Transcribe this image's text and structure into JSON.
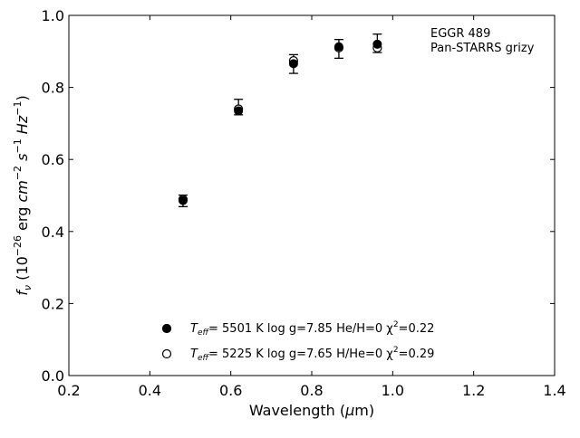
{
  "chart_data": {
    "type": "scatter",
    "xlabel": "Wavelength (μm)",
    "ylabel": "f_ν (10^-26 erg cm^-2 s^-1 Hz^-1)",
    "xlim": [
      0.2,
      1.4
    ],
    "ylim": [
      0.0,
      1.0
    ],
    "x_ticks": [
      "0.2",
      "0.4",
      "0.6",
      "0.8",
      "1.0",
      "1.2",
      "1.4"
    ],
    "y_ticks": [
      "0.0",
      "0.2",
      "0.4",
      "0.6",
      "0.8",
      "1.0"
    ],
    "grid": false,
    "legend_placement": "lower-center",
    "annotations": [
      "EGGR 489",
      "Pan-STARRS grizy"
    ],
    "observed": {
      "x": [
        0.482,
        0.619,
        0.755,
        0.867,
        0.962
      ],
      "y": [
        0.487,
        0.742,
        0.869,
        0.908,
        0.922
      ],
      "yerr_low": [
        0.018,
        0.018,
        0.03,
        0.027,
        0.025
      ],
      "yerr_high": [
        0.014,
        0.025,
        0.022,
        0.025,
        0.026
      ]
    },
    "series": [
      {
        "name": "T_eff= 5501 K log g=7.85 He/H=0 χ²=0.22",
        "marker": "filled-circle",
        "color": "#000000",
        "x": [
          0.482,
          0.619,
          0.755,
          0.867,
          0.962
        ],
        "y": [
          0.486,
          0.735,
          0.866,
          0.913,
          0.92
        ]
      },
      {
        "name": "T_eff= 5225 K log g=7.65 H/He=0 χ²=0.29",
        "marker": "open-circle",
        "color": "#000000",
        "x": [
          0.482,
          0.619,
          0.755,
          0.867,
          0.962
        ],
        "y": [
          0.489,
          0.74,
          0.874,
          0.91,
          0.91
        ]
      }
    ],
    "legend": [
      {
        "marker": "filled-circle",
        "teff_sub": "eff",
        "teff_text": "=  5501 K  log g=7.85  He/H=0  χ",
        "chi_sup": "2",
        "chi_text": "=0.22"
      },
      {
        "marker": "open-circle",
        "teff_sub": "eff",
        "teff_text": "=  5225 K  log g=7.65  H/He=0  χ",
        "chi_sup": "2",
        "chi_text": "=0.29"
      }
    ]
  }
}
